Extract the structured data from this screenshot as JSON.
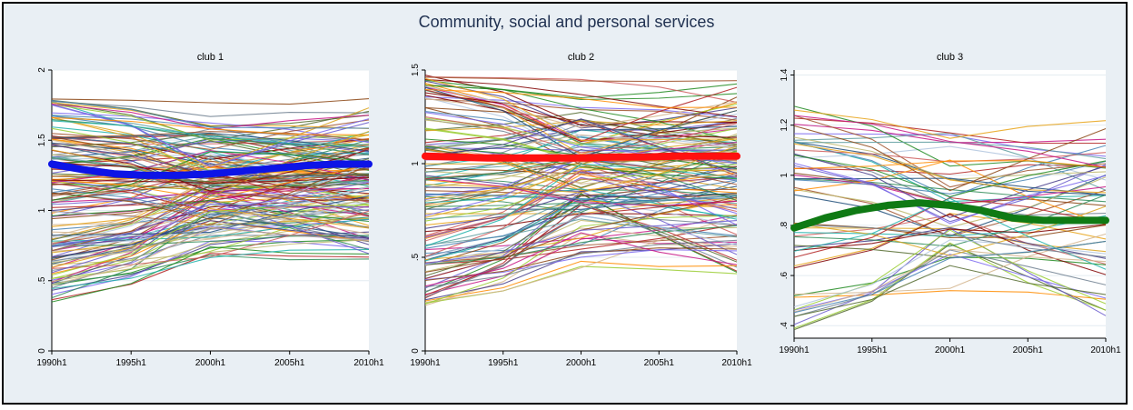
{
  "title": "Community, social and personal services",
  "chart_data": [
    {
      "type": "line",
      "title": "club 1",
      "x_ticks": [
        "1990h1",
        "1995h1",
        "2000h1",
        "2005h1",
        "2010h1"
      ],
      "y_ticks": [
        "0",
        ".5",
        "1",
        "1.5",
        "2"
      ],
      "ylim": [
        0,
        2
      ],
      "highlight_series": {
        "color": "#0d14e6",
        "x": [
          1990,
          1992,
          1994,
          1996,
          1998,
          2000,
          2002,
          2004,
          2006,
          2008,
          2010
        ],
        "values": [
          1.33,
          1.29,
          1.26,
          1.25,
          1.25,
          1.26,
          1.28,
          1.3,
          1.32,
          1.33,
          1.33
        ]
      },
      "background_series_count": 160,
      "background_range": [
        0.34,
        1.81
      ]
    },
    {
      "type": "line",
      "title": "club 2",
      "x_ticks": [
        "1990h1",
        "1995h1",
        "2000h1",
        "2005h1",
        "2010h1"
      ],
      "y_ticks": [
        "0",
        ".5",
        "1",
        "1.5"
      ],
      "ylim": [
        0,
        1.5
      ],
      "highlight_series": {
        "color": "#ff1010",
        "x": [
          1990,
          1992,
          1994,
          1996,
          1998,
          2000,
          2002,
          2004,
          2006,
          2008,
          2010
        ],
        "values": [
          1.04,
          1.035,
          1.03,
          1.03,
          1.03,
          1.03,
          1.035,
          1.035,
          1.04,
          1.04,
          1.04
        ]
      },
      "background_series_count": 140,
      "background_range": [
        0.24,
        1.5
      ]
    },
    {
      "type": "line",
      "title": "club 3",
      "x_ticks": [
        "1990h1",
        "1995h1",
        "2000h1",
        "2005h1",
        "2010h1"
      ],
      "y_ticks": [
        ".4",
        ".6",
        ".8",
        "1",
        "1.2",
        "1.4"
      ],
      "ylim": [
        0.35,
        1.42
      ],
      "highlight_series": {
        "color": "#0f7a14",
        "x": [
          1990,
          1992,
          1994,
          1996,
          1998,
          2000,
          2002,
          2004,
          2006,
          2008,
          2010
        ],
        "values": [
          0.79,
          0.83,
          0.86,
          0.88,
          0.89,
          0.88,
          0.86,
          0.83,
          0.82,
          0.82,
          0.82
        ]
      },
      "background_series_count": 60,
      "background_range": [
        0.35,
        1.29
      ]
    }
  ]
}
